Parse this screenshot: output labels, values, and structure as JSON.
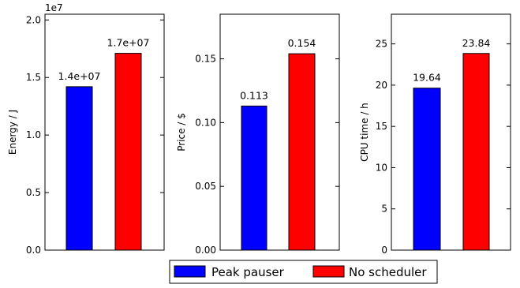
{
  "chart_data": [
    {
      "type": "bar",
      "categories": [
        "Peak pauser",
        "No scheduler"
      ],
      "values": [
        14200000,
        17100000
      ],
      "data_labels": [
        "1.4e+07",
        "1.7e+07"
      ],
      "ylabel": "Energy / J",
      "ylim": [
        0,
        20500000
      ],
      "yticks": [
        0,
        5000000,
        10000000,
        15000000,
        20000000
      ],
      "ytick_labels": [
        "0.0",
        "0.5",
        "1.0",
        "1.5",
        "2.0"
      ],
      "offset_text": "1e7",
      "colors": [
        "#0000ff",
        "#ff0000"
      ]
    },
    {
      "type": "bar",
      "categories": [
        "Peak pauser",
        "No scheduler"
      ],
      "values": [
        0.113,
        0.154
      ],
      "data_labels": [
        "0.113",
        "0.154"
      ],
      "ylabel": "Price / $",
      "ylim": [
        0,
        0.185
      ],
      "yticks": [
        0,
        0.05,
        0.1,
        0.15
      ],
      "ytick_labels": [
        "0.00",
        "0.05",
        "0.10",
        "0.15"
      ],
      "offset_text": "",
      "colors": [
        "#0000ff",
        "#ff0000"
      ]
    },
    {
      "type": "bar",
      "categories": [
        "Peak pauser",
        "No scheduler"
      ],
      "values": [
        19.64,
        23.84
      ],
      "data_labels": [
        "19.64",
        "23.84"
      ],
      "ylabel": "CPU time / h",
      "ylim": [
        0,
        28.6
      ],
      "yticks": [
        0,
        5,
        10,
        15,
        20,
        25
      ],
      "ytick_labels": [
        "0",
        "5",
        "10",
        "15",
        "20",
        "25"
      ],
      "offset_text": "",
      "colors": [
        "#0000ff",
        "#ff0000"
      ]
    }
  ],
  "legend": {
    "position": "bottom-center",
    "items": [
      {
        "label": "Peak pauser",
        "color": "#0000ff"
      },
      {
        "label": "No scheduler",
        "color": "#ff0000"
      }
    ]
  }
}
